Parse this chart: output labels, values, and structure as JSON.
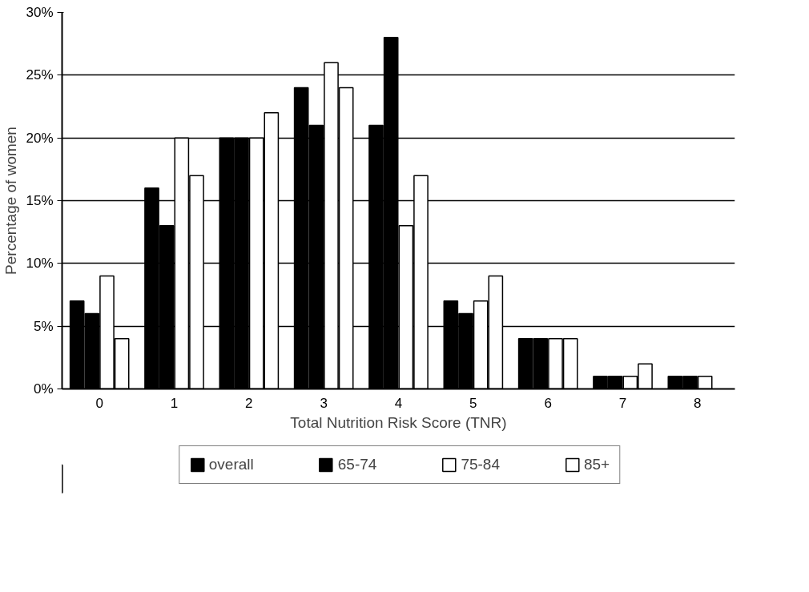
{
  "chart_data": {
    "type": "bar",
    "xlabel": "Total Nutrition Risk Score (TNR)",
    "ylabel": "Percentage of women",
    "categories": [
      "0",
      "1",
      "2",
      "3",
      "4",
      "5",
      "6",
      "7",
      "8"
    ],
    "series": [
      {
        "name": "overall",
        "color": "#000000",
        "values": [
          7,
          16,
          20,
          24,
          21,
          7,
          4,
          1,
          1
        ]
      },
      {
        "name": "65-74",
        "color": "#000000",
        "values": [
          6,
          13,
          20,
          21,
          28,
          6,
          4,
          1,
          1
        ]
      },
      {
        "name": "75-84",
        "color": "#ffffff",
        "values": [
          9,
          20,
          20,
          26,
          13,
          7,
          4,
          1,
          1
        ]
      },
      {
        "name": "85+",
        "color": "#ffffff",
        "values": [
          4,
          17,
          22,
          24,
          17,
          9,
          4,
          2,
          0
        ]
      }
    ],
    "ylim": [
      0,
      30
    ],
    "yticks": [
      {
        "value": 0,
        "label": "0%"
      },
      {
        "value": 5,
        "label": "5%"
      },
      {
        "value": 10,
        "label": "10%"
      },
      {
        "value": 15,
        "label": "15%"
      },
      {
        "value": 20,
        "label": "20%"
      },
      {
        "value": 25,
        "label": "25%"
      },
      {
        "value": 30,
        "label": "30%"
      }
    ],
    "grid": "y",
    "legend": "bottom"
  }
}
